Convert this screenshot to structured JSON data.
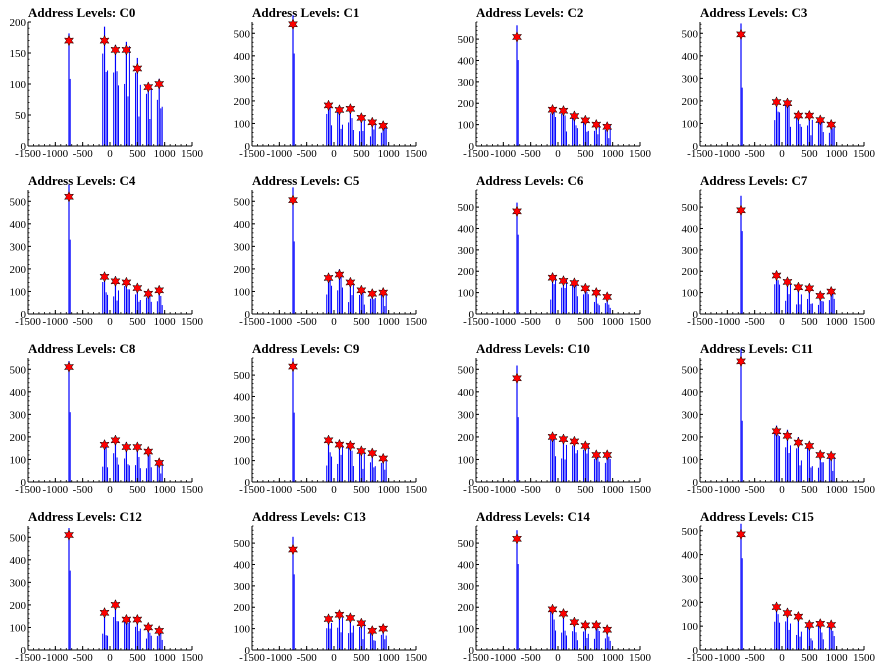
{
  "colors": {
    "histogram": "#0000ff",
    "peak_marker": "#ff0000",
    "axis": "#000000",
    "background": "#ffffff"
  },
  "chart_data": [
    {
      "type": "bar",
      "title": "Address Levels: C0",
      "xlim": [
        -1500,
        1500
      ],
      "ylim": [
        0,
        200
      ],
      "x_ticks": [
        "-1500",
        "-1000",
        "-500",
        "0",
        "500",
        "1000",
        "1500"
      ],
      "y_ticks": [
        "0",
        "50",
        "100",
        "150",
        "200"
      ],
      "peaks": [
        {
          "x": -750,
          "y": 170
        },
        {
          "x": -100,
          "y": 170
        },
        {
          "x": 100,
          "y": 155
        },
        {
          "x": 300,
          "y": 155
        },
        {
          "x": 500,
          "y": 125
        },
        {
          "x": 700,
          "y": 95
        },
        {
          "x": 900,
          "y": 100
        }
      ]
    },
    {
      "type": "bar",
      "title": "Address Levels: C1",
      "xlim": [
        -1500,
        1500
      ],
      "ylim": [
        0,
        550
      ],
      "x_ticks": [
        "-1500",
        "-1000",
        "-500",
        "0",
        "500",
        "1000",
        "1500"
      ],
      "y_ticks": [
        "0",
        "100",
        "200",
        "300",
        "400",
        "500"
      ],
      "peaks": [
        {
          "x": -750,
          "y": 540
        },
        {
          "x": -100,
          "y": 180
        },
        {
          "x": 100,
          "y": 160
        },
        {
          "x": 300,
          "y": 165
        },
        {
          "x": 500,
          "y": 125
        },
        {
          "x": 700,
          "y": 105
        },
        {
          "x": 900,
          "y": 90
        }
      ]
    },
    {
      "type": "bar",
      "title": "Address Levels: C2",
      "xlim": [
        -1500,
        1500
      ],
      "ylim": [
        0,
        580
      ],
      "x_ticks": [
        "-1500",
        "-1000",
        "-500",
        "0",
        "500",
        "1000",
        "1500"
      ],
      "y_ticks": [
        "0",
        "100",
        "200",
        "300",
        "400",
        "500"
      ],
      "peaks": [
        {
          "x": -750,
          "y": 510
        },
        {
          "x": -100,
          "y": 170
        },
        {
          "x": 100,
          "y": 165
        },
        {
          "x": 300,
          "y": 140
        },
        {
          "x": 500,
          "y": 120
        },
        {
          "x": 700,
          "y": 100
        },
        {
          "x": 900,
          "y": 90
        }
      ]
    },
    {
      "type": "bar",
      "title": "Address Levels: C3",
      "xlim": [
        -1500,
        1500
      ],
      "ylim": [
        0,
        550
      ],
      "x_ticks": [
        "-1500",
        "-1000",
        "-500",
        "0",
        "500",
        "1000",
        "1500"
      ],
      "y_ticks": [
        "0",
        "100",
        "200",
        "300",
        "400",
        "500"
      ],
      "peaks": [
        {
          "x": -750,
          "y": 495
        },
        {
          "x": -100,
          "y": 195
        },
        {
          "x": 100,
          "y": 190
        },
        {
          "x": 300,
          "y": 135
        },
        {
          "x": 500,
          "y": 135
        },
        {
          "x": 700,
          "y": 115
        },
        {
          "x": 900,
          "y": 95
        }
      ]
    },
    {
      "type": "bar",
      "title": "Address Levels: C4",
      "xlim": [
        -1500,
        1500
      ],
      "ylim": [
        0,
        550
      ],
      "x_ticks": [
        "-1500",
        "-1000",
        "-500",
        "0",
        "500",
        "1000",
        "1500"
      ],
      "y_ticks": [
        "0",
        "100",
        "200",
        "300",
        "400",
        "500"
      ],
      "peaks": [
        {
          "x": -750,
          "y": 520
        },
        {
          "x": -100,
          "y": 165
        },
        {
          "x": 100,
          "y": 145
        },
        {
          "x": 300,
          "y": 140
        },
        {
          "x": 500,
          "y": 115
        },
        {
          "x": 700,
          "y": 90
        },
        {
          "x": 900,
          "y": 105
        }
      ]
    },
    {
      "type": "bar",
      "title": "Address Levels: C5",
      "xlim": [
        -1500,
        1500
      ],
      "ylim": [
        0,
        550
      ],
      "x_ticks": [
        "-1500",
        "-1000",
        "-500",
        "0",
        "500",
        "1000",
        "1500"
      ],
      "y_ticks": [
        "0",
        "100",
        "200",
        "300",
        "400",
        "500"
      ],
      "peaks": [
        {
          "x": -750,
          "y": 505
        },
        {
          "x": -100,
          "y": 160
        },
        {
          "x": 100,
          "y": 175
        },
        {
          "x": 300,
          "y": 140
        },
        {
          "x": 500,
          "y": 105
        },
        {
          "x": 700,
          "y": 90
        },
        {
          "x": 900,
          "y": 95
        }
      ]
    },
    {
      "type": "bar",
      "title": "Address Levels: C6",
      "xlim": [
        -1500,
        1500
      ],
      "ylim": [
        0,
        580
      ],
      "x_ticks": [
        "-1500",
        "-1000",
        "-500",
        "0",
        "500",
        "1000",
        "1500"
      ],
      "y_ticks": [
        "0",
        "100",
        "200",
        "300",
        "400",
        "500"
      ],
      "peaks": [
        {
          "x": -750,
          "y": 480
        },
        {
          "x": -100,
          "y": 170
        },
        {
          "x": 100,
          "y": 155
        },
        {
          "x": 300,
          "y": 145
        },
        {
          "x": 500,
          "y": 120
        },
        {
          "x": 700,
          "y": 100
        },
        {
          "x": 900,
          "y": 80
        }
      ]
    },
    {
      "type": "bar",
      "title": "Address Levels: C7",
      "xlim": [
        -1500,
        1500
      ],
      "ylim": [
        0,
        580
      ],
      "x_ticks": [
        "-1500",
        "-1000",
        "-500",
        "0",
        "500",
        "1000",
        "1500"
      ],
      "y_ticks": [
        "0",
        "100",
        "200",
        "300",
        "400",
        "500"
      ],
      "peaks": [
        {
          "x": -750,
          "y": 485
        },
        {
          "x": -100,
          "y": 180
        },
        {
          "x": 100,
          "y": 150
        },
        {
          "x": 300,
          "y": 125
        },
        {
          "x": 500,
          "y": 120
        },
        {
          "x": 700,
          "y": 85
        },
        {
          "x": 900,
          "y": 105
        }
      ]
    },
    {
      "type": "bar",
      "title": "Address Levels: C8",
      "xlim": [
        -1500,
        1500
      ],
      "ylim": [
        0,
        550
      ],
      "x_ticks": [
        "-1500",
        "-1000",
        "-500",
        "0",
        "500",
        "1000",
        "1500"
      ],
      "y_ticks": [
        "0",
        "100",
        "200",
        "300",
        "400",
        "500"
      ],
      "peaks": [
        {
          "x": -750,
          "y": 510
        },
        {
          "x": -100,
          "y": 165
        },
        {
          "x": 100,
          "y": 185
        },
        {
          "x": 300,
          "y": 155
        },
        {
          "x": 500,
          "y": 155
        },
        {
          "x": 700,
          "y": 135
        },
        {
          "x": 900,
          "y": 85
        }
      ]
    },
    {
      "type": "bar",
      "title": "Address Levels: C9",
      "xlim": [
        -1500,
        1500
      ],
      "ylim": [
        0,
        580
      ],
      "x_ticks": [
        "-1500",
        "-1000",
        "-500",
        "0",
        "500",
        "1000",
        "1500"
      ],
      "y_ticks": [
        "0",
        "100",
        "200",
        "300",
        "400",
        "500"
      ],
      "peaks": [
        {
          "x": -750,
          "y": 540
        },
        {
          "x": -100,
          "y": 195
        },
        {
          "x": 100,
          "y": 175
        },
        {
          "x": 300,
          "y": 170
        },
        {
          "x": 500,
          "y": 145
        },
        {
          "x": 700,
          "y": 135
        },
        {
          "x": 900,
          "y": 110
        }
      ]
    },
    {
      "type": "bar",
      "title": "Address Levels: C10",
      "xlim": [
        -1500,
        1500
      ],
      "ylim": [
        0,
        550
      ],
      "x_ticks": [
        "-1500",
        "-1000",
        "-500",
        "0",
        "500",
        "1000",
        "1500"
      ],
      "y_ticks": [
        "0",
        "100",
        "200",
        "300",
        "400",
        "500"
      ],
      "peaks": [
        {
          "x": -750,
          "y": 460
        },
        {
          "x": -100,
          "y": 200
        },
        {
          "x": 100,
          "y": 190
        },
        {
          "x": 300,
          "y": 180
        },
        {
          "x": 500,
          "y": 160
        },
        {
          "x": 700,
          "y": 120
        },
        {
          "x": 900,
          "y": 120
        }
      ]
    },
    {
      "type": "bar",
      "title": "Address Levels: C11",
      "xlim": [
        -1500,
        1500
      ],
      "ylim": [
        0,
        550
      ],
      "x_ticks": [
        "-1500",
        "-1000",
        "-500",
        "0",
        "500",
        "1000",
        "1500"
      ],
      "y_ticks": [
        "0",
        "100",
        "200",
        "300",
        "400",
        "500"
      ],
      "peaks": [
        {
          "x": -750,
          "y": 535
        },
        {
          "x": -100,
          "y": 225
        },
        {
          "x": 100,
          "y": 205
        },
        {
          "x": 300,
          "y": 175
        },
        {
          "x": 500,
          "y": 160
        },
        {
          "x": 700,
          "y": 120
        },
        {
          "x": 900,
          "y": 115
        }
      ]
    },
    {
      "type": "bar",
      "title": "Address Levels: C12",
      "xlim": [
        -1500,
        1500
      ],
      "ylim": [
        0,
        550
      ],
      "x_ticks": [
        "-1500",
        "-1000",
        "-500",
        "0",
        "500",
        "1000",
        "1500"
      ],
      "y_ticks": [
        "0",
        "100",
        "200",
        "300",
        "400",
        "500"
      ],
      "peaks": [
        {
          "x": -750,
          "y": 510
        },
        {
          "x": -100,
          "y": 165
        },
        {
          "x": 100,
          "y": 200
        },
        {
          "x": 300,
          "y": 135
        },
        {
          "x": 500,
          "y": 135
        },
        {
          "x": 700,
          "y": 100
        },
        {
          "x": 900,
          "y": 85
        }
      ]
    },
    {
      "type": "bar",
      "title": "Address Levels: C13",
      "xlim": [
        -1500,
        1500
      ],
      "ylim": [
        0,
        580
      ],
      "x_ticks": [
        "-1500",
        "-1000",
        "-500",
        "0",
        "500",
        "1000",
        "1500"
      ],
      "y_ticks": [
        "0",
        "100",
        "200",
        "300",
        "400",
        "500"
      ],
      "peaks": [
        {
          "x": -750,
          "y": 470
        },
        {
          "x": -100,
          "y": 145
        },
        {
          "x": 100,
          "y": 165
        },
        {
          "x": 300,
          "y": 150
        },
        {
          "x": 500,
          "y": 125
        },
        {
          "x": 700,
          "y": 90
        },
        {
          "x": 900,
          "y": 100
        }
      ]
    },
    {
      "type": "bar",
      "title": "Address Levels: C14",
      "xlim": [
        -1500,
        1500
      ],
      "ylim": [
        0,
        580
      ],
      "x_ticks": [
        "-1500",
        "-1000",
        "-500",
        "0",
        "500",
        "1000",
        "1500"
      ],
      "y_ticks": [
        "0",
        "100",
        "200",
        "300",
        "400",
        "500"
      ],
      "peaks": [
        {
          "x": -750,
          "y": 520
        },
        {
          "x": -100,
          "y": 190
        },
        {
          "x": 100,
          "y": 170
        },
        {
          "x": 300,
          "y": 130
        },
        {
          "x": 500,
          "y": 115
        },
        {
          "x": 700,
          "y": 115
        },
        {
          "x": 900,
          "y": 95
        }
      ]
    },
    {
      "type": "bar",
      "title": "Address Levels: C15",
      "xlim": [
        -1500,
        1500
      ],
      "ylim": [
        0,
        520
      ],
      "x_ticks": [
        "-1500",
        "-1000",
        "-500",
        "0",
        "500",
        "1000",
        "1500"
      ],
      "y_ticks": [
        "0",
        "100",
        "200",
        "300",
        "400",
        "500"
      ],
      "peaks": [
        {
          "x": -750,
          "y": 485
        },
        {
          "x": -100,
          "y": 180
        },
        {
          "x": 100,
          "y": 155
        },
        {
          "x": 300,
          "y": 140
        },
        {
          "x": 500,
          "y": 105
        },
        {
          "x": 700,
          "y": 110
        },
        {
          "x": 900,
          "y": 105
        }
      ]
    }
  ]
}
